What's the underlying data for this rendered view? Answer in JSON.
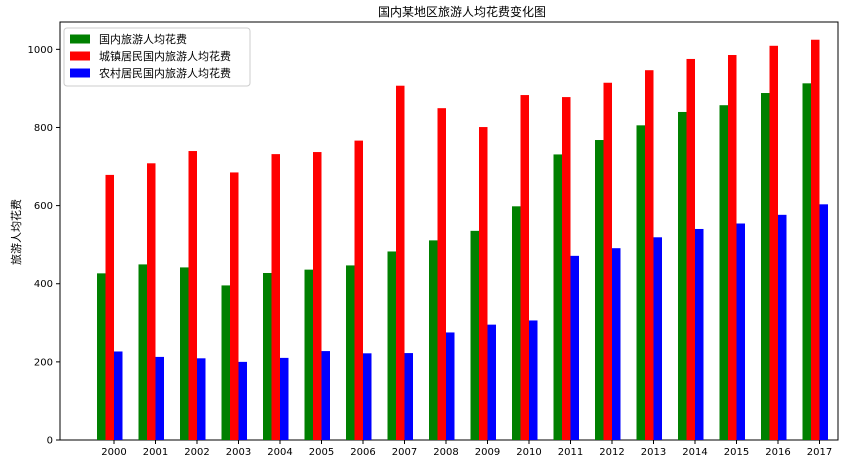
{
  "chart_data": {
    "type": "bar",
    "title": "国内某地区旅游人均花费变化图",
    "xlabel": "",
    "ylabel": "旅游人均花费",
    "ylim": [
      0,
      1070
    ],
    "yticks": [
      0,
      200,
      400,
      600,
      800,
      1000
    ],
    "grid": false,
    "legend_position": "top-left",
    "categories": [
      "2000",
      "2001",
      "2002",
      "2003",
      "2004",
      "2005",
      "2006",
      "2007",
      "2008",
      "2009",
      "2010",
      "2011",
      "2012",
      "2013",
      "2014",
      "2015",
      "2016",
      "2017"
    ],
    "series": [
      {
        "name": "国内旅游人均花费",
        "color": "#008000",
        "values": [
          426.6,
          449.5,
          441.8,
          395.7,
          427.5,
          436.1,
          446.9,
          482.6,
          511.0,
          535.4,
          598.2,
          731.0,
          767.9,
          805.5,
          839.7,
          857.0,
          888.2,
          913.0
        ]
      },
      {
        "name": "城镇居民国内旅游人均花费",
        "color": "#ff0000",
        "values": [
          678.6,
          708.3,
          739.7,
          684.9,
          731.8,
          737.1,
          766.4,
          906.9,
          849.4,
          801.1,
          883.0,
          877.8,
          914.5,
          946.6,
          975.4,
          985.5,
          1009.1,
          1024.6
        ]
      },
      {
        "name": "农村居民国内旅游人均花费",
        "color": "#0000ff",
        "values": [
          226.6,
          212.7,
          209.1,
          200.0,
          210.2,
          227.6,
          221.9,
          222.5,
          275.3,
          295.3,
          306.0,
          471.4,
          491.0,
          518.9,
          540.2,
          554.2,
          576.4,
          603.3
        ]
      }
    ]
  }
}
